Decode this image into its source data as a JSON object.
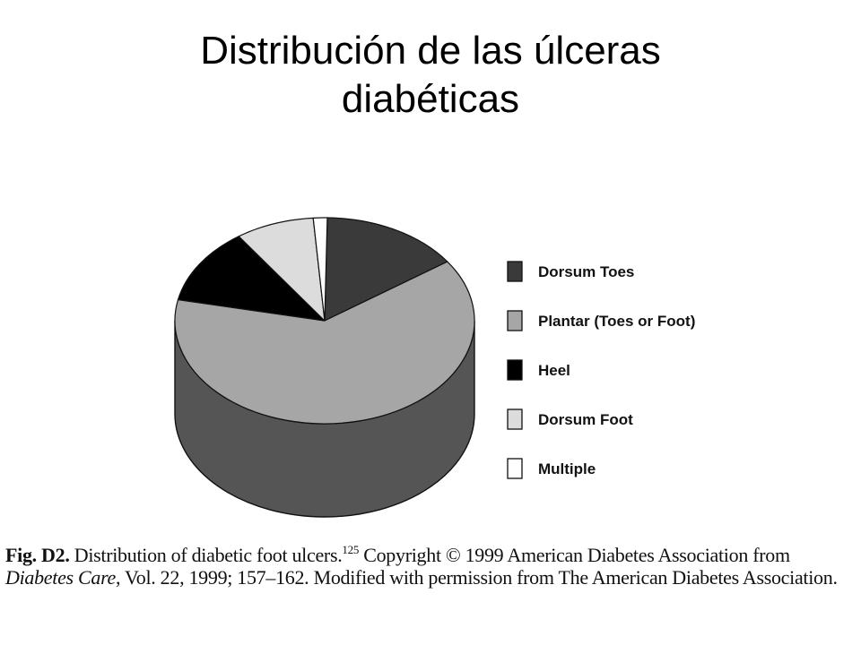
{
  "slide": {
    "title_line1": "Distribución de las úlceras",
    "title_line2": "diabéticas"
  },
  "chart_data": {
    "type": "pie",
    "style": "3d",
    "title": "",
    "slices": [
      {
        "label": "Dorsum Toes",
        "value": 15,
        "color": "#3a3a3a"
      },
      {
        "label": "Plantar (Toes or Foot)",
        "value": 63,
        "color": "#a6a6a6"
      },
      {
        "label": "Heel",
        "value": 12,
        "color": "#000000"
      },
      {
        "label": "Dorsum Foot",
        "value": 8.5,
        "color": "#dcdcdc"
      },
      {
        "label": "Multiple",
        "value": 1.5,
        "color": "#ffffff"
      }
    ],
    "legend_placement": "right",
    "side_color": "#555555"
  },
  "caption": {
    "fig_label": "Fig. D2.",
    "text_before_ref": " Distribution of diabetic foot ulcers.",
    "reference": "125",
    "text_before_journal": " Copyright © 1999 American Diabetes Association from ",
    "journal": "Diabetes Care",
    "text_after_journal": ", Vol. 22, 1999; 157–162. Modified with permission from The American Diabetes Association."
  }
}
